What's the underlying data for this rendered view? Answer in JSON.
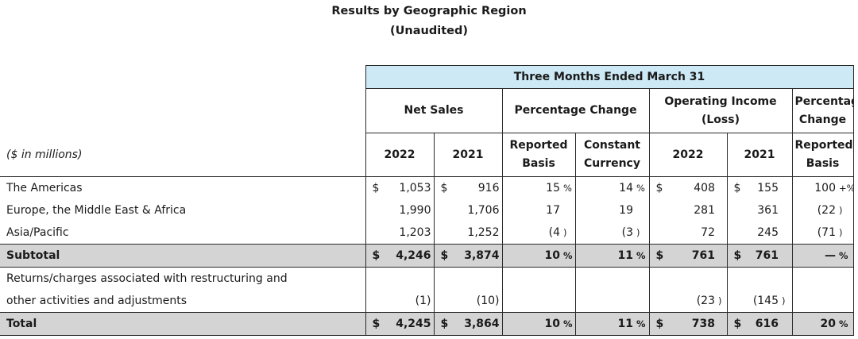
{
  "title": "Results by Geographic Region",
  "subtitle": "(Unaudited)",
  "header": {
    "period": "Three Months Ended March 31",
    "net_sales": "Net Sales",
    "pct_change": "Percentage Change",
    "operating_income": "Operating Income (Loss)",
    "pct_change2": "Percentage Change",
    "units": "($ in millions)",
    "y2022": "2022",
    "y2021": "2021",
    "reported_basis": "Reported Basis",
    "constant_currency": "Constant Currency",
    "oi_2022": "2022",
    "oi_2021": "2021",
    "reported_basis2": "Reported Basis"
  },
  "rows": [
    {
      "label": "The Americas",
      "ns22_sym": "$",
      "ns22": "1,053",
      "ns21_sym": "$",
      "ns21": "916",
      "rep": "15",
      "rep_pct": "%",
      "cc": "14",
      "cc_pct": "%",
      "oi22_sym": "$",
      "oi22": "408",
      "oi21_sym": "$",
      "oi21": "155",
      "oirep": "100",
      "oirep_pct": "+%"
    },
    {
      "label": "Europe, the Middle East & Africa",
      "ns22": "1,990",
      "ns21": "1,706",
      "rep": "17",
      "cc": "19",
      "oi22": "281",
      "oi21": "361",
      "oirep": "(22",
      "oirep_pct": ")"
    },
    {
      "label": "Asia/Pacific",
      "ns22": "1,203",
      "ns21": "1,252",
      "rep": "(4",
      "rep_pct": ")",
      "cc": "(3",
      "cc_pct": ")",
      "oi22": "72",
      "oi21": "245",
      "oirep": "(71",
      "oirep_pct": ")"
    },
    {
      "label": "Subtotal",
      "ns22_sym": "$",
      "ns22": "4,246",
      "ns21_sym": "$",
      "ns21": "3,874",
      "rep": "10",
      "rep_pct": "%",
      "cc": "11",
      "cc_pct": "%",
      "oi22_sym": "$",
      "oi22": "761",
      "oi21_sym": "$",
      "oi21": "761",
      "oirep": "—",
      "oirep_pct": "%"
    },
    {
      "label": "Returns/charges associated with restructuring and"
    },
    {
      "label": "other activities and adjustments",
      "ns22": "(1",
      "ns22_pct": ")",
      "ns21": "(10",
      "ns21_pct": ")",
      "oi22": "(23",
      "oi22_pct": ")",
      "oi21": "(145",
      "oi21_pct": ")"
    },
    {
      "label": "Total",
      "ns22_sym": "$",
      "ns22": "4,245",
      "ns21_sym": "$",
      "ns21": "3,864",
      "rep": "10",
      "rep_pct": "%",
      "cc": "11",
      "cc_pct": "%",
      "oi22_sym": "$",
      "oi22": "738",
      "oi21_sym": "$",
      "oi21": "616",
      "oirep": "20",
      "oirep_pct": "%"
    }
  ]
}
